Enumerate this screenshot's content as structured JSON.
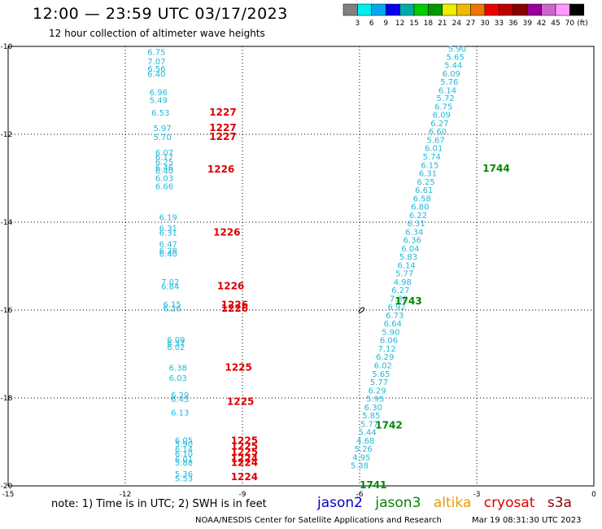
{
  "header": {
    "title": "12:00 — 23:59 UTC 03/17/2023",
    "subtitle": "12 hour collection of altimeter wave heights"
  },
  "colorbar": {
    "colors": [
      "#808080",
      "#00eeee",
      "#00aaee",
      "#0000ee",
      "#00aaaa",
      "#00cc00",
      "#009900",
      "#eeee00",
      "#eebb00",
      "#ee7700",
      "#ee0000",
      "#bb0000",
      "#880000",
      "#990099",
      "#cc66cc",
      "#ff99ff",
      "#000000"
    ],
    "labels": [
      "3",
      "6",
      "9",
      "12",
      "15",
      "18",
      "21",
      "24",
      "27",
      "30",
      "33",
      "36",
      "39",
      "42",
      "45",
      "70"
    ],
    "unit": "(ft)"
  },
  "footer": {
    "note": "note: 1) Time is in UTC; 2) SWH is in feet",
    "center": "NOAA/NESDIS Center for Satellite Applications and Research",
    "timestamp": "Mar 19 08:31:30 UTC 2023"
  },
  "legend": [
    {
      "name": "jason2",
      "color": "#0000cc"
    },
    {
      "name": "jason3",
      "color": "#008800"
    },
    {
      "name": "altika",
      "color": "#ee9900"
    },
    {
      "name": "cryosat",
      "color": "#dd0000"
    },
    {
      "name": "s3a",
      "color": "#880000"
    }
  ],
  "chart_data": {
    "type": "scatter",
    "xlim": [
      -15,
      0
    ],
    "ylim": [
      -20,
      -10
    ],
    "xticks": [
      "-15",
      "-12",
      "-9",
      "-6",
      "-3",
      "0"
    ],
    "yticks": [
      "-10",
      "-12",
      "-14",
      "-16",
      "-18",
      "-20"
    ],
    "grid": true,
    "colors": {
      "swh": "#22b8d8",
      "pass_cryosat": "#dd0000",
      "pass_jason3": "#008800"
    },
    "series": [
      {
        "name": "cryosat",
        "points": [
          {
            "x": -11.2,
            "y": -10.12,
            "v": "6.75"
          },
          {
            "x": -11.2,
            "y": -10.33,
            "v": "7.07"
          },
          {
            "x": -11.2,
            "y": -10.5,
            "v": "6.56"
          },
          {
            "x": -11.2,
            "y": -10.62,
            "v": "6.40"
          },
          {
            "x": -11.15,
            "y": -11.04,
            "v": "6.96"
          },
          {
            "x": -11.15,
            "y": -11.21,
            "v": "5.49"
          },
          {
            "x": -11.1,
            "y": -11.5,
            "v": "6.53"
          },
          {
            "x": -11.05,
            "y": -11.85,
            "v": "5.97"
          },
          {
            "x": -11.05,
            "y": -12.06,
            "v": "5.70"
          },
          {
            "x": -11.0,
            "y": -12.41,
            "v": "6.07"
          },
          {
            "x": -11.0,
            "y": -12.51,
            "v": "6.17"
          },
          {
            "x": -11.0,
            "y": -12.62,
            "v": "6.25"
          },
          {
            "x": -11.0,
            "y": -12.75,
            "v": "6.46"
          },
          {
            "x": -11.0,
            "y": -12.82,
            "v": "6.40"
          },
          {
            "x": -11.0,
            "y": -12.99,
            "v": "6.03"
          },
          {
            "x": -11.0,
            "y": -13.18,
            "v": "6.66"
          },
          {
            "x": -10.9,
            "y": -13.88,
            "v": "6.19"
          },
          {
            "x": -10.9,
            "y": -14.13,
            "v": "6.31"
          },
          {
            "x": -10.9,
            "y": -14.23,
            "v": "6.31"
          },
          {
            "x": -10.9,
            "y": -14.49,
            "v": "6.47"
          },
          {
            "x": -10.9,
            "y": -14.64,
            "v": "6.28"
          },
          {
            "x": -10.9,
            "y": -14.71,
            "v": "6.40"
          },
          {
            "x": -10.85,
            "y": -15.35,
            "v": "7.02"
          },
          {
            "x": -10.85,
            "y": -15.45,
            "v": "6.84"
          },
          {
            "x": -10.8,
            "y": -15.86,
            "v": "6.15"
          },
          {
            "x": -10.8,
            "y": -15.95,
            "v": "6.26"
          },
          {
            "x": -10.7,
            "y": -16.67,
            "v": "6.09"
          },
          {
            "x": -10.7,
            "y": -16.75,
            "v": "6.37"
          },
          {
            "x": -10.7,
            "y": -16.83,
            "v": "6.02"
          },
          {
            "x": -10.65,
            "y": -17.31,
            "v": "6.38"
          },
          {
            "x": -10.65,
            "y": -17.54,
            "v": "6.03"
          },
          {
            "x": -10.6,
            "y": -17.93,
            "v": "6.29"
          },
          {
            "x": -10.6,
            "y": -18.02,
            "v": "6.43"
          },
          {
            "x": -10.6,
            "y": -18.32,
            "v": "6.13"
          },
          {
            "x": -10.5,
            "y": -18.95,
            "v": "6.05"
          },
          {
            "x": -10.5,
            "y": -19.04,
            "v": "5.90"
          },
          {
            "x": -10.5,
            "y": -19.16,
            "v": "6.14"
          },
          {
            "x": -10.5,
            "y": -19.26,
            "v": "6.10"
          },
          {
            "x": -10.5,
            "y": -19.39,
            "v": "6.01"
          },
          {
            "x": -10.5,
            "y": -19.46,
            "v": "5.88"
          },
          {
            "x": -10.5,
            "y": -19.72,
            "v": "5.36"
          },
          {
            "x": -10.5,
            "y": -19.82,
            "v": "5.53"
          }
        ],
        "pass_labels": [
          {
            "x": -9.5,
            "y": -11.5,
            "t": "1227"
          },
          {
            "x": -9.5,
            "y": -11.85,
            "t": "1227"
          },
          {
            "x": -9.5,
            "y": -12.06,
            "t": "1227"
          },
          {
            "x": -9.55,
            "y": -12.8,
            "t": "1226"
          },
          {
            "x": -9.4,
            "y": -14.23,
            "t": "1226"
          },
          {
            "x": -9.3,
            "y": -15.45,
            "t": "1226"
          },
          {
            "x": -9.2,
            "y": -15.88,
            "t": "1226"
          },
          {
            "x": -9.2,
            "y": -15.96,
            "t": "1226"
          },
          {
            "x": -9.1,
            "y": -17.31,
            "t": "1225"
          },
          {
            "x": -9.05,
            "y": -18.08,
            "t": "1225"
          },
          {
            "x": -8.95,
            "y": -18.97,
            "t": "1225"
          },
          {
            "x": -8.95,
            "y": -19.1,
            "t": "1225"
          },
          {
            "x": -8.95,
            "y": -19.23,
            "t": "1225"
          },
          {
            "x": -8.95,
            "y": -19.38,
            "t": "1224"
          },
          {
            "x": -8.95,
            "y": -19.47,
            "t": "1224"
          },
          {
            "x": -8.95,
            "y": -19.8,
            "t": "1224"
          }
        ]
      },
      {
        "name": "jason3",
        "points": [
          {
            "x": -3.5,
            "y": -10.05,
            "v": "5.90"
          },
          {
            "x": -3.55,
            "y": -10.23,
            "v": "5.65"
          },
          {
            "x": -3.6,
            "y": -10.42,
            "v": "5.44"
          },
          {
            "x": -3.65,
            "y": -10.61,
            "v": "6.09"
          },
          {
            "x": -3.7,
            "y": -10.8,
            "v": "5.76"
          },
          {
            "x": -3.75,
            "y": -10.99,
            "v": "6.14"
          },
          {
            "x": -3.8,
            "y": -11.17,
            "v": "5.72"
          },
          {
            "x": -3.85,
            "y": -11.36,
            "v": "6.75"
          },
          {
            "x": -3.9,
            "y": -11.55,
            "v": "6.09"
          },
          {
            "x": -3.95,
            "y": -11.74,
            "v": "6.27"
          },
          {
            "x": -4.0,
            "y": -11.93,
            "v": "6.60"
          },
          {
            "x": -4.05,
            "y": -12.12,
            "v": "5.67"
          },
          {
            "x": -4.1,
            "y": -12.31,
            "v": "6.01"
          },
          {
            "x": -4.15,
            "y": -12.5,
            "v": "5.74"
          },
          {
            "x": -4.2,
            "y": -12.69,
            "v": "6.15"
          },
          {
            "x": -4.25,
            "y": -12.88,
            "v": "6.31"
          },
          {
            "x": -4.3,
            "y": -13.07,
            "v": "6.25"
          },
          {
            "x": -4.35,
            "y": -13.26,
            "v": "6.61"
          },
          {
            "x": -4.4,
            "y": -13.45,
            "v": "6.58"
          },
          {
            "x": -4.45,
            "y": -13.64,
            "v": "6.80"
          },
          {
            "x": -4.5,
            "y": -13.83,
            "v": "6.22"
          },
          {
            "x": -4.55,
            "y": -14.02,
            "v": "6.31"
          },
          {
            "x": -4.6,
            "y": -14.21,
            "v": "6.34"
          },
          {
            "x": -4.65,
            "y": -14.4,
            "v": "6.36"
          },
          {
            "x": -4.7,
            "y": -14.59,
            "v": "6.04"
          },
          {
            "x": -4.75,
            "y": -14.78,
            "v": "5.83"
          },
          {
            "x": -4.8,
            "y": -14.97,
            "v": "6.14"
          },
          {
            "x": -4.85,
            "y": -15.16,
            "v": "5.77"
          },
          {
            "x": -4.9,
            "y": -15.35,
            "v": "4.98"
          },
          {
            "x": -4.95,
            "y": -15.54,
            "v": "6.27"
          },
          {
            "x": -5.0,
            "y": -15.73,
            "v": "7.30"
          },
          {
            "x": -5.05,
            "y": -15.92,
            "v": "6.92"
          },
          {
            "x": -5.1,
            "y": -16.11,
            "v": "6.73"
          },
          {
            "x": -5.15,
            "y": -16.3,
            "v": "6.64"
          },
          {
            "x": -5.2,
            "y": -16.49,
            "v": "5.90"
          },
          {
            "x": -5.25,
            "y": -16.68,
            "v": "6.06"
          },
          {
            "x": -5.3,
            "y": -16.87,
            "v": "7.12"
          },
          {
            "x": -5.35,
            "y": -17.06,
            "v": "6.29"
          },
          {
            "x": -5.4,
            "y": -17.25,
            "v": "6.02"
          },
          {
            "x": -5.45,
            "y": -17.44,
            "v": "5.65"
          },
          {
            "x": -5.5,
            "y": -17.63,
            "v": "5.77"
          },
          {
            "x": -5.55,
            "y": -17.82,
            "v": "6.29"
          },
          {
            "x": -5.6,
            "y": -18.01,
            "v": "5.95"
          },
          {
            "x": -5.65,
            "y": -18.2,
            "v": "6.30"
          },
          {
            "x": -5.7,
            "y": -18.39,
            "v": "5.85"
          },
          {
            "x": -5.75,
            "y": -18.58,
            "v": "5.77"
          },
          {
            "x": -5.8,
            "y": -18.77,
            "v": "5.44"
          },
          {
            "x": -5.85,
            "y": -18.96,
            "v": "4.68"
          },
          {
            "x": -5.9,
            "y": -19.15,
            "v": "5.26"
          },
          {
            "x": -5.95,
            "y": -19.34,
            "v": "4.95"
          },
          {
            "x": -6.0,
            "y": -19.53,
            "v": "5.38"
          }
        ],
        "pass_labels": [
          {
            "x": -2.5,
            "y": -12.78,
            "t": "1744"
          },
          {
            "x": -4.75,
            "y": -15.8,
            "t": "1743"
          },
          {
            "x": -5.25,
            "y": -18.62,
            "t": "1742"
          },
          {
            "x": -5.65,
            "y": -19.98,
            "t": "1741"
          }
        ]
      }
    ]
  }
}
